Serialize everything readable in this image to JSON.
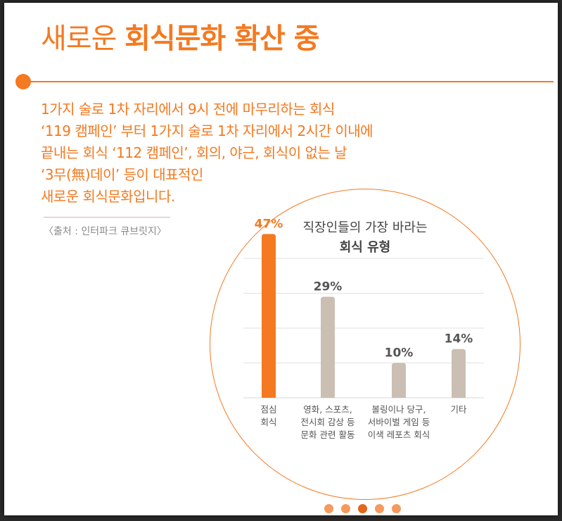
{
  "header": {
    "title_light": "새로운",
    "title_bold": "회식문화 확산 중"
  },
  "description": {
    "lines": [
      "1가지 술로 1차 자리에서 9시 전에 마무리하는 회식",
      "‘119 캠페인’ 부터 1가지 술로 1차 자리에서 2시간 이내에",
      "끝내는 회식 ‘112 캠페인’, 회의, 야근, 회식이 없는 날",
      "‘3무(無)데이’ 등이 대표적인",
      "새로운 회식문화입니다."
    ],
    "source": "〈출처 : 인터파크 큐브릿지〉"
  },
  "colors": {
    "accent": "#f47920",
    "bar_highlight": "#f47920",
    "bar_default": "#cbbfb3",
    "value_default": "#555555",
    "grid": "#e2e2e2"
  },
  "chart_data": {
    "type": "bar",
    "title": "직장인들의 가장 바라는",
    "subtitle": "회식 유형",
    "categories": [
      [
        "점심",
        "회식"
      ],
      [
        "영화, 스포츠,",
        "전시회 감상 등",
        "문화 관련 활동"
      ],
      [
        "볼링이나 당구,",
        "서바이벌 게임 등",
        "이색 레포츠 회식"
      ],
      [
        "기타"
      ]
    ],
    "values": [
      47,
      29,
      10,
      14
    ],
    "value_labels": [
      "47%",
      "29%",
      "10%",
      "14%"
    ],
    "highlight_index": 0,
    "ylim": [
      0,
      50
    ],
    "grid": true
  },
  "pagination": {
    "count": 5,
    "active_index": 2
  }
}
